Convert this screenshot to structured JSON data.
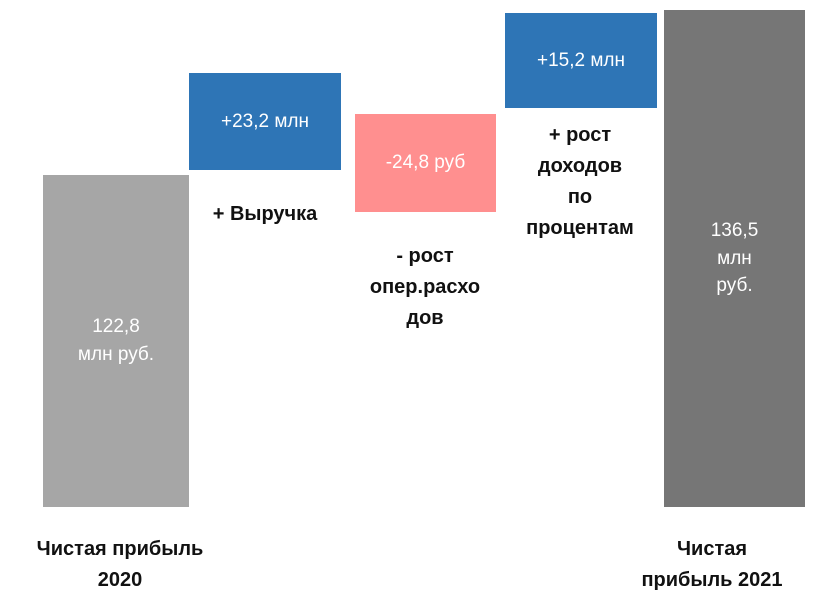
{
  "chart_data": {
    "type": "waterfall",
    "unit": "млн руб.",
    "steps": [
      {
        "kind": "total",
        "value": 122.8,
        "value_label": "122,8\nмлн руб.",
        "category": "Чистая прибыль\n2020",
        "color": "#a6a6a6"
      },
      {
        "kind": "delta",
        "value": 23.2,
        "value_label": "+23,2 млн",
        "category": "+ Выручка",
        "color": "#2e75b6"
      },
      {
        "kind": "delta",
        "value": -24.8,
        "value_label": "-24,8 руб",
        "category": "- рост\nопер.расхо\nдов",
        "color": "#ff8f8f"
      },
      {
        "kind": "delta",
        "value": 15.2,
        "value_label": "+15,2 млн",
        "category": "+ рост\nдоходов\nпо\nпроцентам",
        "color": "#2e75b6"
      },
      {
        "kind": "total",
        "value": 136.5,
        "value_label": "136,5\nмлн\nруб.",
        "category": "Чистая\nприбыль 2021",
        "color": "#767676"
      }
    ]
  }
}
